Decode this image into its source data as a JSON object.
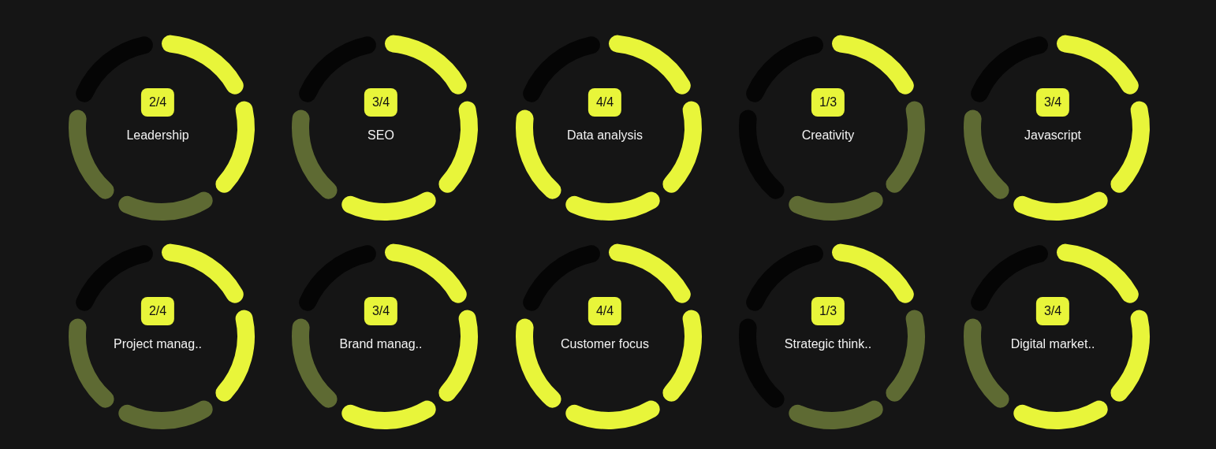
{
  "chart_data": [
    {
      "type": "donut",
      "title": "Leadership",
      "annotations": [
        "2/4"
      ],
      "categories": [
        null,
        null,
        null,
        null,
        null
      ],
      "values": [
        20,
        20,
        20,
        20,
        20
      ],
      "colors": [
        "#e8f53a",
        "#e8f53a",
        "#5e6a33",
        "#5e6a33",
        "#050505"
      ]
    },
    {
      "type": "donut",
      "title": "SEO",
      "annotations": [
        "3/4"
      ],
      "categories": [
        null,
        null,
        null,
        null,
        null
      ],
      "values": [
        20,
        20,
        20,
        20,
        20
      ],
      "colors": [
        "#e8f53a",
        "#e8f53a",
        "#e8f53a",
        "#5e6a33",
        "#050505"
      ]
    },
    {
      "type": "donut",
      "title": "Data analysis",
      "annotations": [
        "4/4"
      ],
      "categories": [
        null,
        null,
        null,
        null,
        null
      ],
      "values": [
        20,
        20,
        20,
        20,
        20
      ],
      "colors": [
        "#e8f53a",
        "#e8f53a",
        "#e8f53a",
        "#e8f53a",
        "#050505"
      ]
    },
    {
      "type": "donut",
      "title": "Creativity",
      "annotations": [
        "1/3"
      ],
      "categories": [
        null,
        null,
        null,
        null,
        null
      ],
      "values": [
        20,
        20,
        20,
        20,
        20
      ],
      "colors": [
        "#e8f53a",
        "#5e6a33",
        "#5e6a33",
        "#050505",
        "#050505"
      ]
    },
    {
      "type": "donut",
      "title": "Javascript",
      "annotations": [
        "3/4"
      ],
      "categories": [
        null,
        null,
        null,
        null,
        null
      ],
      "values": [
        20,
        20,
        20,
        20,
        20
      ],
      "colors": [
        "#e8f53a",
        "#e8f53a",
        "#e8f53a",
        "#5e6a33",
        "#050505"
      ]
    },
    {
      "type": "donut",
      "title": "Project manag..",
      "annotations": [
        "2/4"
      ],
      "categories": [
        null,
        null,
        null,
        null,
        null
      ],
      "values": [
        20,
        20,
        20,
        20,
        20
      ],
      "colors": [
        "#e8f53a",
        "#e8f53a",
        "#5e6a33",
        "#5e6a33",
        "#050505"
      ]
    },
    {
      "type": "donut",
      "title": "Brand manag..",
      "annotations": [
        "3/4"
      ],
      "categories": [
        null,
        null,
        null,
        null,
        null
      ],
      "values": [
        20,
        20,
        20,
        20,
        20
      ],
      "colors": [
        "#e8f53a",
        "#e8f53a",
        "#e8f53a",
        "#5e6a33",
        "#050505"
      ]
    },
    {
      "type": "donut",
      "title": "Customer focus",
      "annotations": [
        "4/4"
      ],
      "categories": [
        null,
        null,
        null,
        null,
        null
      ],
      "values": [
        20,
        20,
        20,
        20,
        20
      ],
      "colors": [
        "#e8f53a",
        "#e8f53a",
        "#e8f53a",
        "#e8f53a",
        "#050505"
      ]
    },
    {
      "type": "donut",
      "title": "Strategic think..",
      "annotations": [
        "1/3"
      ],
      "categories": [
        null,
        null,
        null,
        null,
        null
      ],
      "values": [
        20,
        20,
        20,
        20,
        20
      ],
      "colors": [
        "#e8f53a",
        "#5e6a33",
        "#5e6a33",
        "#050505",
        "#050505"
      ]
    },
    {
      "type": "donut",
      "title": "Digital market..",
      "annotations": [
        "3/4"
      ],
      "categories": [
        null,
        null,
        null,
        null,
        null
      ],
      "values": [
        20,
        20,
        20,
        20,
        20
      ],
      "colors": [
        "#e8f53a",
        "#e8f53a",
        "#e8f53a",
        "#5e6a33",
        "#050505"
      ]
    }
  ]
}
